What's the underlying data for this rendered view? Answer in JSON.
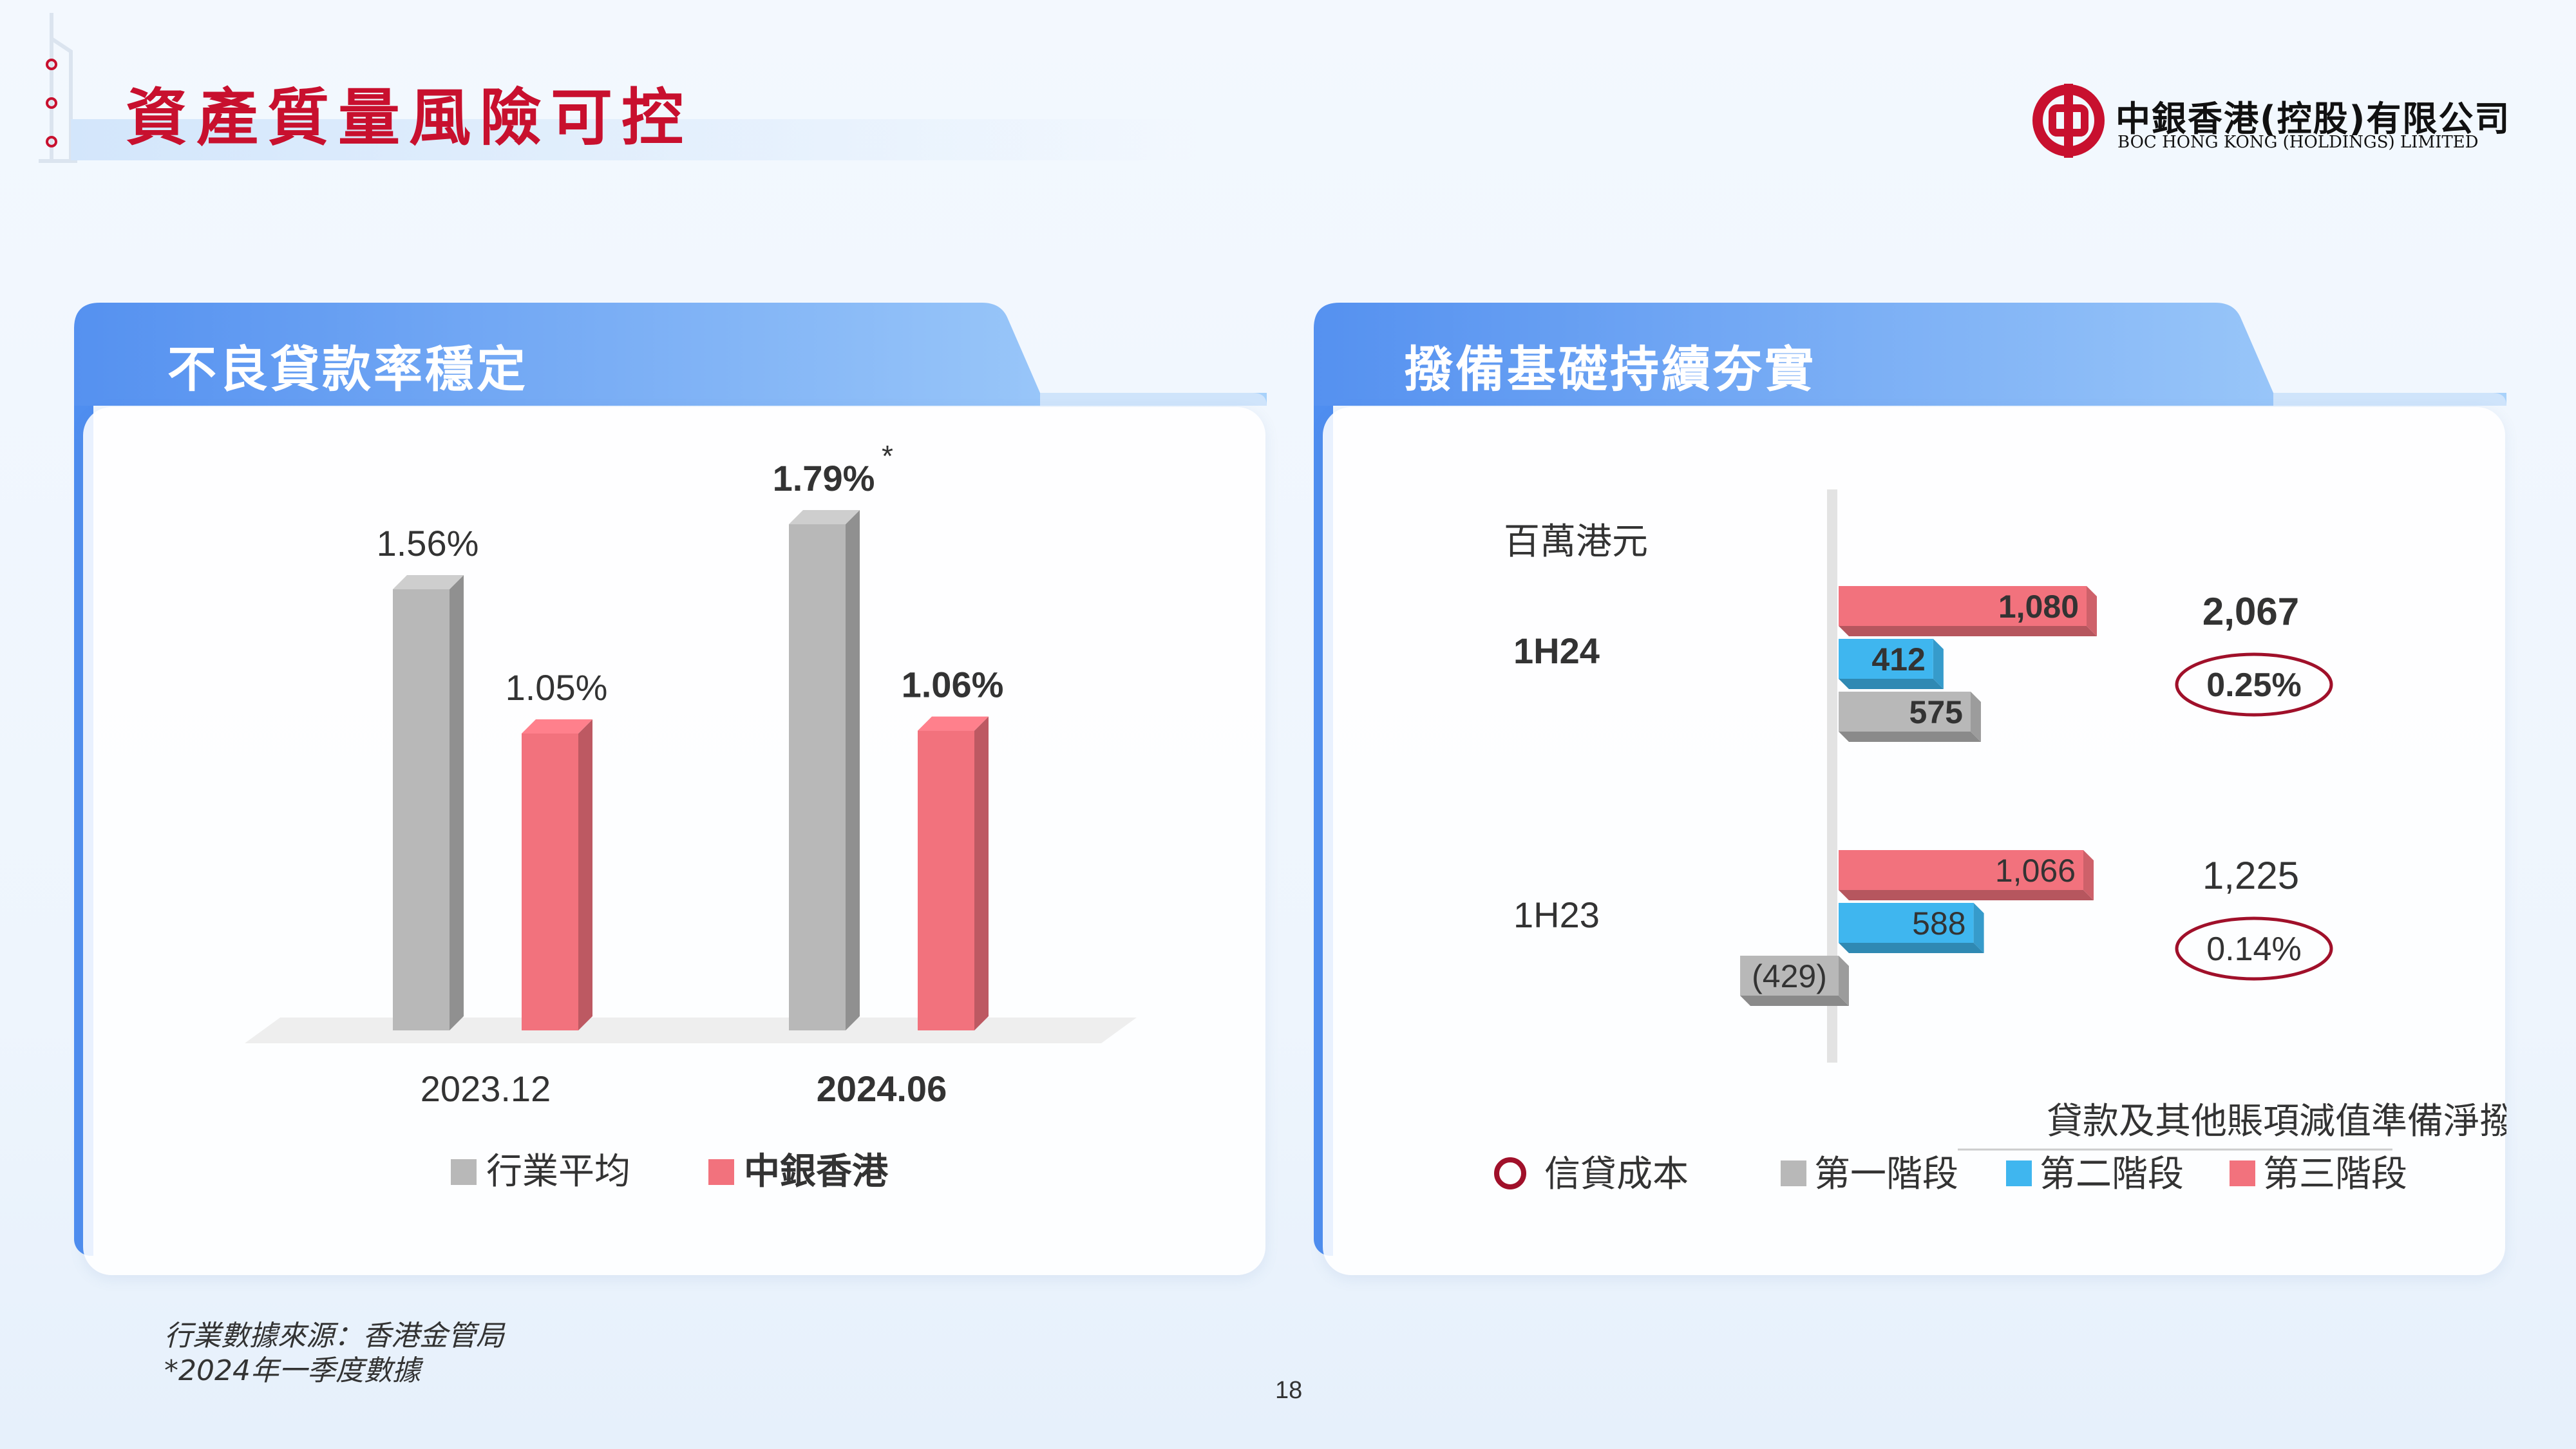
{
  "page": {
    "title": "資產質量風險可控",
    "page_number": "18"
  },
  "logo": {
    "name_cn": "中銀香港(控股)有限公司",
    "name_en": "BOC HONG KONG (HOLDINGS) LIMITED",
    "brand_color": "#c8102e"
  },
  "left_panel": {
    "tab_title": "不良貸款率穩定"
  },
  "right_panel": {
    "tab_title": "撥備基礎持續夯實"
  },
  "footnotes": {
    "source": "行業數據來源：香港金管局",
    "note": "*2024年一季度數據"
  },
  "chart_data": [
    {
      "type": "bar",
      "title": "",
      "categories": [
        "2023.12",
        "2024.06"
      ],
      "series": [
        {
          "name": "行業平均",
          "values": [
            1.56,
            1.79
          ],
          "labels": [
            "1.56%",
            "1.79%"
          ],
          "color": "#b8b8b8"
        },
        {
          "name": "中銀香港",
          "values": [
            1.05,
            1.06
          ],
          "labels": [
            "1.05%",
            "1.06%"
          ],
          "color": "#f2727d"
        }
      ],
      "annotations": [
        {
          "series": "行業平均",
          "category": "2024.06",
          "text": "*"
        }
      ],
      "ylim": [
        0,
        2.2
      ],
      "grid": false,
      "legend": "bottom"
    },
    {
      "type": "bar",
      "orientation": "horizontal",
      "stacked": false,
      "unit": "百萬港元",
      "categories": [
        "1H24",
        "1H23"
      ],
      "series": [
        {
          "name": "第三階段",
          "values": [
            1080,
            1066
          ],
          "labels": [
            "1,080",
            "1,066"
          ],
          "color": "#f2727d"
        },
        {
          "name": "第二階段",
          "values": [
            412,
            588
          ],
          "labels": [
            "412",
            "588"
          ],
          "color": "#3fb6ef"
        },
        {
          "name": "第一階段",
          "values": [
            575,
            -429
          ],
          "labels": [
            "575",
            "(429)"
          ],
          "color": "#b8b8b8"
        }
      ],
      "totals": [
        "2,067",
        "1,225"
      ],
      "credit_cost": [
        "0.25%",
        "0.14%"
      ],
      "legend_title": "貸款及其他賬項減值準備淨撥備",
      "legend_credit_cost": "信貸成本",
      "legend_credit_cost_color": "#a0102a",
      "xlim": [
        -500,
        1200
      ],
      "grid": false,
      "legend": "bottom"
    }
  ]
}
